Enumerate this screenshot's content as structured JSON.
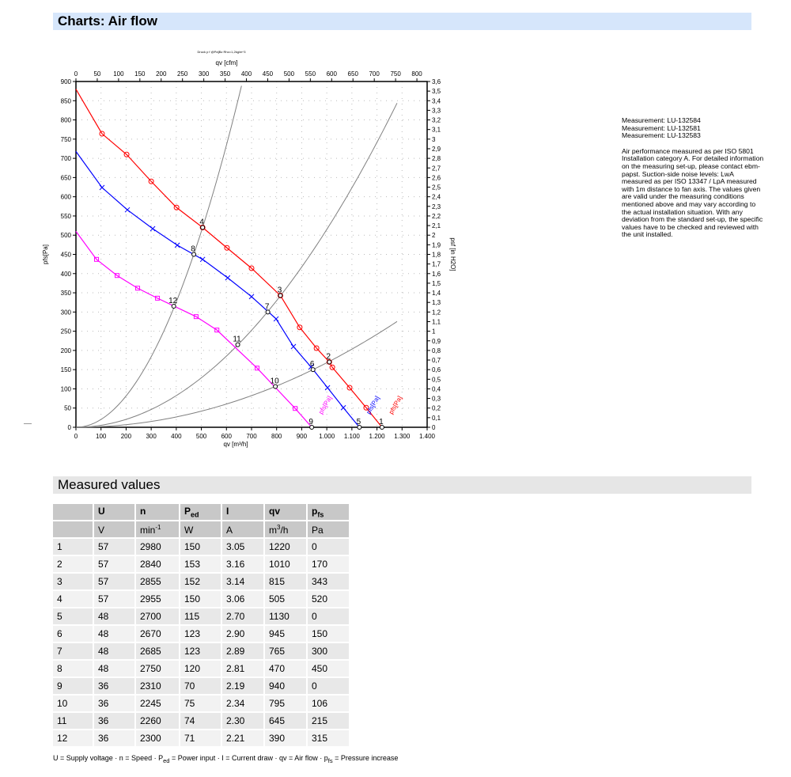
{
  "section_title": "Charts: Air flow",
  "measured_title": "Measured values",
  "notes": {
    "measurements": [
      "Measurement: LU-132584",
      "Measurement: LU-132581",
      "Measurement: LU-132583"
    ],
    "description": "Air performance measured as per ISO 5801 Installation category A. For detailed information on the measuring set-up, please contact ebm-papst. Suction-side noise levels: LwA measured as per ISO 13347 / LpA measured with 1m distance to fan axis. The values given are valid under the measuring conditions mentioned above and may vary according to the actual installation situation. With any deviation from the standard set-up, the specific values have to be checked and reviewed with the unit installed."
  },
  "chart_data": {
    "type": "line",
    "title": "Druck p f @Pa]Bz Rho=1,2kg/m^3",
    "xlabel": "qv [m³/h]",
    "x_top_label": "qv [cfm]",
    "ylabel": "pfs[Pa]",
    "y_right_label": "psf [in H2O]",
    "xlim": [
      0,
      1400
    ],
    "ylim": [
      0,
      900
    ],
    "x_top_lim": [
      0,
      800
    ],
    "y_right_lim": [
      0,
      3.6
    ],
    "xticks": [
      "0",
      "100",
      "200",
      "300",
      "400",
      "500",
      "600",
      "700",
      "800",
      "900",
      "1.000",
      "1.100",
      "1.200",
      "1.300",
      "1.400"
    ],
    "grid": true,
    "series": [
      {
        "name": "pfs[Pa]",
        "color": "#ff0000",
        "marker": "circle",
        "x": [
          0,
          104,
          202,
          300,
          401,
          505,
          602,
          700,
          815,
          892,
          959,
          1010,
          1022,
          1091,
          1157,
          1220
        ],
        "y": [
          880,
          764,
          710,
          640,
          572,
          520,
          467,
          414,
          343,
          260,
          206,
          170,
          156,
          103,
          51,
          0
        ]
      },
      {
        "name": "pfs[Pa]",
        "color": "#0000ff",
        "marker": "x",
        "x": [
          0,
          104,
          205,
          306,
          404,
          505,
          605,
          700,
          798,
          867,
          937,
          1003,
          1066,
          1130
        ],
        "y": [
          718,
          624,
          566,
          517,
          474,
          437,
          389,
          340,
          282,
          210,
          157,
          103,
          51,
          0
        ]
      },
      {
        "name": "pfs[Pa]",
        "color": "#ff00ff",
        "marker": "square",
        "x": [
          0,
          82,
          164,
          246,
          325,
          479,
          562,
          722,
          874,
          940
        ],
        "y": [
          510,
          437,
          395,
          362,
          336,
          288,
          253,
          154,
          49,
          0
        ]
      }
    ],
    "system_curves": [
      {
        "k": 0.00204,
        "color": "#808080"
      },
      {
        "k": 0.000515,
        "color": "#808080"
      },
      {
        "k": 0.000168,
        "color": "#808080"
      }
    ],
    "operating_points": [
      {
        "label": "1",
        "x": 1220,
        "y": 0
      },
      {
        "label": "2",
        "x": 1010,
        "y": 170
      },
      {
        "label": "3",
        "x": 815,
        "y": 343
      },
      {
        "label": "4",
        "x": 505,
        "y": 520
      },
      {
        "label": "5",
        "x": 1130,
        "y": 0
      },
      {
        "label": "6",
        "x": 945,
        "y": 150
      },
      {
        "label": "7",
        "x": 765,
        "y": 300
      },
      {
        "label": "8",
        "x": 470,
        "y": 450
      },
      {
        "label": "9",
        "x": 940,
        "y": 0
      },
      {
        "label": "10",
        "x": 795,
        "y": 106
      },
      {
        "label": "11",
        "x": 645,
        "y": 215
      },
      {
        "label": "12",
        "x": 390,
        "y": 315
      }
    ]
  },
  "table": {
    "headers": [
      "",
      "U",
      "n",
      "P",
      "I",
      "qv",
      "p"
    ],
    "header_subs": [
      "",
      "",
      "",
      "ed",
      "",
      "",
      "fs"
    ],
    "units": [
      "",
      "V",
      "min",
      "W",
      "A",
      "m",
      "Pa"
    ],
    "unit_sups": [
      "",
      "",
      "-1",
      "",
      "",
      "3",
      ""
    ],
    "unit_suffix": [
      "",
      "",
      "",
      "",
      "",
      "/h",
      ""
    ],
    "rows": [
      [
        "1",
        "57",
        "2980",
        "150",
        "3.05",
        "1220",
        "0"
      ],
      [
        "2",
        "57",
        "2840",
        "153",
        "3.16",
        "1010",
        "170"
      ],
      [
        "3",
        "57",
        "2855",
        "152",
        "3.14",
        "815",
        "343"
      ],
      [
        "4",
        "57",
        "2955",
        "150",
        "3.06",
        "505",
        "520"
      ],
      [
        "5",
        "48",
        "2700",
        "115",
        "2.70",
        "1130",
        "0"
      ],
      [
        "6",
        "48",
        "2670",
        "123",
        "2.90",
        "945",
        "150"
      ],
      [
        "7",
        "48",
        "2685",
        "123",
        "2.89",
        "765",
        "300"
      ],
      [
        "8",
        "48",
        "2750",
        "120",
        "2.81",
        "470",
        "450"
      ],
      [
        "9",
        "36",
        "2310",
        "70",
        "2.19",
        "940",
        "0"
      ],
      [
        "10",
        "36",
        "2245",
        "75",
        "2.34",
        "795",
        "106"
      ],
      [
        "11",
        "36",
        "2260",
        "74",
        "2.30",
        "645",
        "215"
      ],
      [
        "12",
        "36",
        "2300",
        "71",
        "2.21",
        "390",
        "315"
      ]
    ],
    "footnote_a": "U = Supply voltage · n = Speed · P",
    "footnote_b": "ed",
    "footnote_c": " = Power input · I = Current draw · qv = Air flow · p",
    "footnote_d": "fs",
    "footnote_e": " = Pressure increase"
  }
}
